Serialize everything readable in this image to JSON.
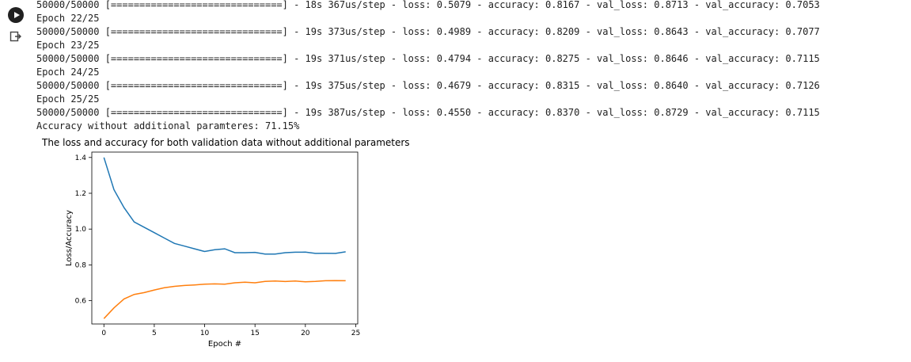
{
  "log_lines": [
    "50000/50000 [==============================] - 18s 367us/step - loss: 0.5079 - accuracy: 0.8167 - val_loss: 0.8713 - val_accuracy: 0.7053",
    "Epoch 22/25",
    "50000/50000 [==============================] - 19s 373us/step - loss: 0.4989 - accuracy: 0.8209 - val_loss: 0.8643 - val_accuracy: 0.7077",
    "Epoch 23/25",
    "50000/50000 [==============================] - 19s 371us/step - loss: 0.4794 - accuracy: 0.8275 - val_loss: 0.8646 - val_accuracy: 0.7115",
    "Epoch 24/25",
    "50000/50000 [==============================] - 19s 375us/step - loss: 0.4679 - accuracy: 0.8315 - val_loss: 0.8640 - val_accuracy: 0.7126",
    "Epoch 25/25",
    "50000/50000 [==============================] - 19s 387us/step - loss: 0.4550 - accuracy: 0.8370 - val_loss: 0.8729 - val_accuracy: 0.7115",
    "Accuracy without additional paramteres: 71.15%"
  ],
  "caption": "The loss and accuracy for both validation data without additional parameters",
  "icons": {
    "run": "play-circle-icon",
    "output": "output-icon"
  },
  "chart_data": {
    "type": "line",
    "xlabel": "Epoch #",
    "ylabel": "Loss/Accuracy",
    "xlim": [
      -1.2,
      25.2
    ],
    "ylim": [
      0.47,
      1.43
    ],
    "xticks": [
      0,
      5,
      10,
      15,
      20,
      25
    ],
    "yticks": [
      0.6,
      0.8,
      1.0,
      1.2,
      1.4
    ],
    "grid": false,
    "x": [
      0,
      1,
      2,
      3,
      4,
      5,
      6,
      7,
      8,
      9,
      10,
      11,
      12,
      13,
      14,
      15,
      16,
      17,
      18,
      19,
      20,
      21,
      22,
      23,
      24
    ],
    "series": [
      {
        "color": "#1f77b4",
        "values": [
          1.4,
          1.22,
          1.12,
          1.04,
          1.01,
          0.98,
          0.95,
          0.92,
          0.905,
          0.89,
          0.875,
          0.885,
          0.89,
          0.868,
          0.868,
          0.87,
          0.86,
          0.86,
          0.868,
          0.871,
          0.8713,
          0.8643,
          0.8646,
          0.864,
          0.8729
        ]
      },
      {
        "color": "#ff7f0e",
        "values": [
          0.5,
          0.56,
          0.61,
          0.635,
          0.645,
          0.66,
          0.672,
          0.68,
          0.685,
          0.688,
          0.692,
          0.694,
          0.692,
          0.7,
          0.703,
          0.7,
          0.708,
          0.71,
          0.707,
          0.71,
          0.7053,
          0.7077,
          0.7115,
          0.7126,
          0.7115
        ]
      }
    ]
  }
}
